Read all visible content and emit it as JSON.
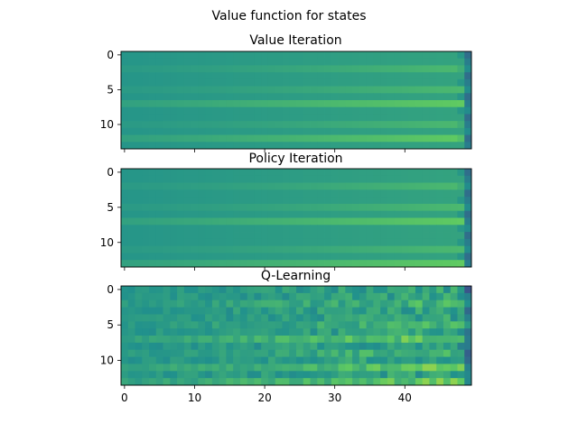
{
  "figure": {
    "suptitle": "Value function for states"
  },
  "chart_data": [
    {
      "type": "heatmap",
      "title": "Value Iteration",
      "rows": 14,
      "cols": 50,
      "colormap": "viridis",
      "yticks": [
        0,
        5,
        10
      ],
      "xticks": [
        0,
        10,
        20,
        30,
        40
      ],
      "xticklabels_shown": false,
      "emphasized_rows": [
        7,
        12
      ],
      "moderate_rows": [
        2,
        5,
        10
      ],
      "noise": 0.0
    },
    {
      "type": "heatmap",
      "title": "Policy Iteration",
      "rows": 14,
      "cols": 50,
      "colormap": "viridis",
      "yticks": [
        0,
        5,
        10
      ],
      "xticks": [
        0,
        10,
        20,
        30,
        40
      ],
      "xticklabels_shown": false,
      "emphasized_rows": [
        7,
        13
      ],
      "moderate_rows": [
        2,
        5,
        11
      ],
      "noise": 0.0
    },
    {
      "type": "heatmap",
      "title": "Q-Learning",
      "rows": 14,
      "cols": 50,
      "colormap": "viridis",
      "yticks": [
        0,
        5,
        10
      ],
      "xticks": [
        0,
        10,
        20,
        30,
        40
      ],
      "xticklabels_shown": true,
      "emphasized_rows": [
        7,
        11,
        13
      ],
      "moderate_rows": [
        2,
        5,
        9
      ],
      "noise": 0.08
    }
  ]
}
